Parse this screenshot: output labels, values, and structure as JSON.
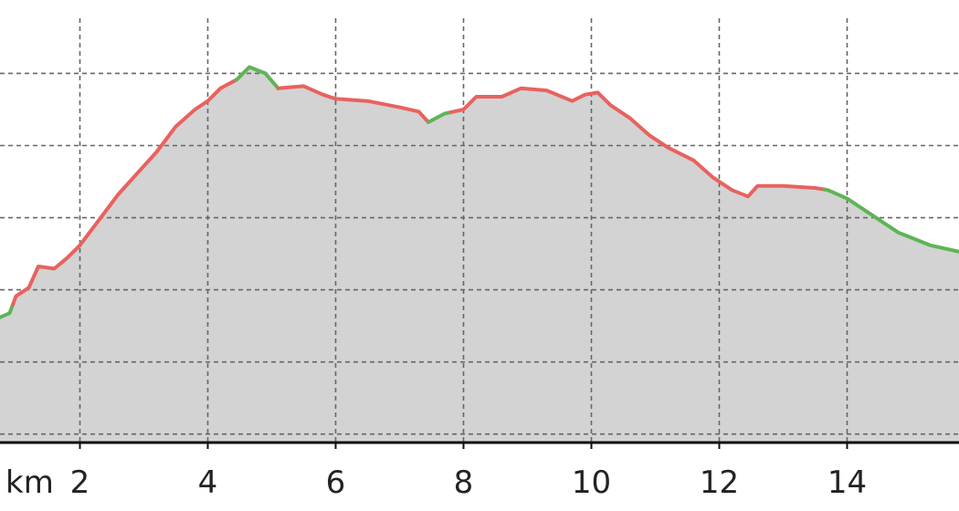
{
  "chart_data": {
    "type": "area",
    "title": "",
    "xlabel": "km",
    "ylabel": "",
    "xlim": [
      0.75,
      15.75
    ],
    "ylim": [
      0,
      100
    ],
    "x_ticks": [
      2,
      4,
      6,
      8,
      10,
      12,
      14
    ],
    "x_tick_labels": [
      "2",
      "4",
      "6",
      "8",
      "10",
      "12",
      "14"
    ],
    "y_gridlines": [
      2,
      19,
      36,
      53,
      70,
      87
    ],
    "grid": true,
    "fill_color": "#d3d3d3",
    "colors": {
      "climb": "#e8625f",
      "descent": "#5fb455"
    },
    "profile": [
      [
        0.75,
        29.5
      ],
      [
        0.9,
        30.5
      ],
      [
        1.0,
        34.5
      ],
      [
        1.2,
        36.5
      ],
      [
        1.35,
        41.5
      ],
      [
        1.6,
        41.0
      ],
      [
        1.8,
        43.5
      ],
      [
        2.0,
        46.5
      ],
      [
        2.3,
        52.5
      ],
      [
        2.6,
        58.5
      ],
      [
        2.9,
        63.5
      ],
      [
        3.2,
        68.5
      ],
      [
        3.5,
        74.5
      ],
      [
        3.8,
        78.5
      ],
      [
        4.0,
        80.5
      ],
      [
        4.2,
        83.5
      ],
      [
        4.45,
        85.5
      ],
      [
        4.65,
        88.5
      ],
      [
        4.9,
        87.0
      ],
      [
        5.1,
        83.5
      ],
      [
        5.5,
        84.0
      ],
      [
        5.8,
        82.0
      ],
      [
        6.0,
        81.0
      ],
      [
        6.5,
        80.5
      ],
      [
        7.0,
        79.0
      ],
      [
        7.3,
        78.0
      ],
      [
        7.45,
        75.5
      ],
      [
        7.7,
        77.5
      ],
      [
        8.0,
        78.5
      ],
      [
        8.2,
        81.5
      ],
      [
        8.6,
        81.5
      ],
      [
        8.9,
        83.5
      ],
      [
        9.3,
        83.0
      ],
      [
        9.7,
        80.5
      ],
      [
        9.9,
        82.0
      ],
      [
        10.1,
        82.5
      ],
      [
        10.3,
        79.5
      ],
      [
        10.6,
        76.5
      ],
      [
        10.9,
        72.5
      ],
      [
        11.2,
        69.5
      ],
      [
        11.6,
        66.5
      ],
      [
        11.9,
        62.5
      ],
      [
        12.2,
        59.5
      ],
      [
        12.45,
        58.0
      ],
      [
        12.6,
        60.5
      ],
      [
        13.0,
        60.5
      ],
      [
        13.5,
        60.0
      ],
      [
        13.7,
        59.5
      ],
      [
        14.0,
        57.5
      ],
      [
        14.4,
        53.5
      ],
      [
        14.8,
        49.5
      ],
      [
        15.3,
        46.5
      ],
      [
        15.75,
        45.0
      ]
    ],
    "segments": [
      {
        "kind": "descent",
        "from": 0.75,
        "to": 0.95
      },
      {
        "kind": "climb",
        "from": 0.95,
        "to": 4.45
      },
      {
        "kind": "descent",
        "from": 4.45,
        "to": 5.1
      },
      {
        "kind": "climb",
        "from": 5.1,
        "to": 7.45
      },
      {
        "kind": "descent",
        "from": 7.45,
        "to": 7.8
      },
      {
        "kind": "climb",
        "from": 7.8,
        "to": 13.65
      },
      {
        "kind": "descent",
        "from": 13.65,
        "to": 15.75
      }
    ]
  }
}
